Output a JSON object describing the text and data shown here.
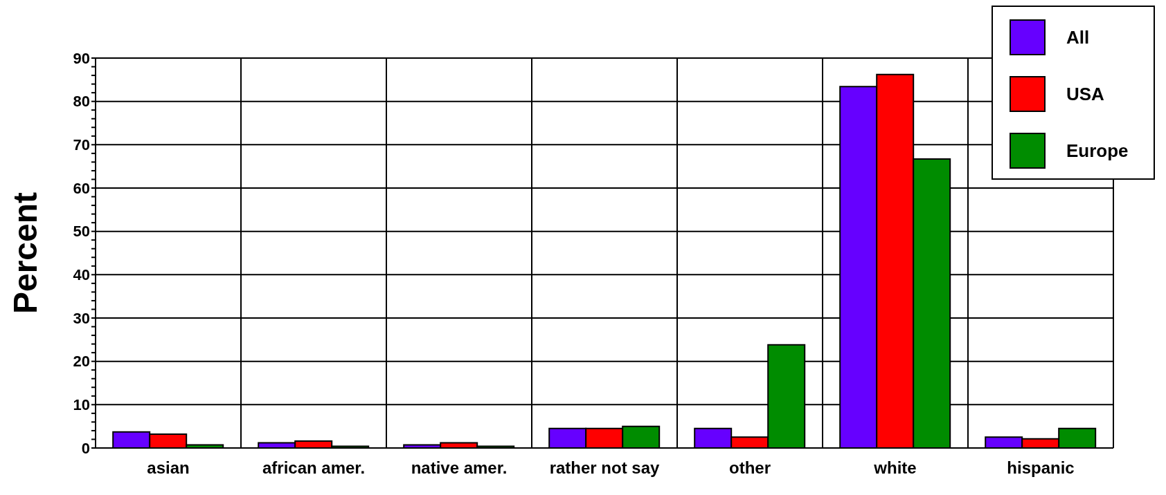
{
  "chart_data": {
    "type": "bar",
    "ylabel": "Percent",
    "categories": [
      "asian",
      "african amer.",
      "native amer.",
      "rather not say",
      "other",
      "white",
      "hispanic"
    ],
    "series": [
      {
        "name": "All",
        "color": "#6600ff",
        "values": [
          3.7,
          1.2,
          0.7,
          4.5,
          4.5,
          83.4,
          2.5
        ]
      },
      {
        "name": "USA",
        "color": "#ff0000",
        "values": [
          3.2,
          1.6,
          1.2,
          4.5,
          2.5,
          86.2,
          2.1
        ]
      },
      {
        "name": "Europe",
        "color": "#008c00",
        "values": [
          0.7,
          0.4,
          0.4,
          5.0,
          23.8,
          66.7,
          4.5
        ]
      }
    ],
    "ylim": [
      0,
      90
    ],
    "yticks": [
      0,
      {
        "value": 2,
        "label": null
      },
      {
        "value": 4,
        "label": null
      },
      {
        "value": 6,
        "label": null
      },
      {
        "value": 8,
        "label": null
      },
      10,
      {
        "value": 12,
        "label": null
      },
      {
        "value": 14,
        "label": null
      },
      {
        "value": 16,
        "label": null
      },
      {
        "value": 18,
        "label": null
      },
      20,
      {
        "value": 22,
        "label": null
      },
      {
        "value": 24,
        "label": null
      },
      {
        "value": 26,
        "label": null
      },
      {
        "value": 28,
        "label": null
      },
      30,
      {
        "value": 32,
        "label": null
      },
      {
        "value": 34,
        "label": null
      },
      {
        "value": 36,
        "label": null
      },
      {
        "value": 38,
        "label": null
      },
      40,
      {
        "value": 42,
        "label": null
      },
      {
        "value": 44,
        "label": null
      },
      {
        "value": 46,
        "label": null
      },
      {
        "value": 48,
        "label": null
      },
      50,
      {
        "value": 52,
        "label": null
      },
      {
        "value": 54,
        "label": null
      },
      {
        "value": 56,
        "label": null
      },
      {
        "value": 58,
        "label": null
      },
      60,
      {
        "value": 62,
        "label": null
      },
      {
        "value": 64,
        "label": null
      },
      {
        "value": 66,
        "label": null
      },
      {
        "value": 68,
        "label": null
      },
      70,
      {
        "value": 72,
        "label": null
      },
      {
        "value": 74,
        "label": null
      },
      {
        "value": 76,
        "label": null
      },
      {
        "value": 78,
        "label": null
      },
      80,
      {
        "value": 82,
        "label": null
      },
      {
        "value": 84,
        "label": null
      },
      {
        "value": 86,
        "label": null
      },
      {
        "value": 88,
        "label": null
      },
      90
    ],
    "grid": true,
    "legend": "top right"
  }
}
